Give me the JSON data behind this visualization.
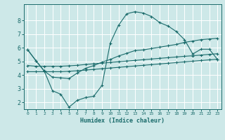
{
  "xlabel": "Humidex (Indice chaleur)",
  "bg_color": "#cde8e8",
  "grid_color": "#ffffff",
  "line_color": "#1a6b6b",
  "xlim": [
    -0.5,
    23.5
  ],
  "ylim": [
    1.5,
    9.2
  ],
  "yticks": [
    2,
    3,
    4,
    5,
    6,
    7,
    8
  ],
  "xticks": [
    0,
    1,
    2,
    3,
    4,
    5,
    6,
    7,
    8,
    9,
    10,
    11,
    12,
    13,
    14,
    15,
    16,
    17,
    18,
    19,
    20,
    21,
    22,
    23
  ],
  "curve1_x": [
    0,
    1,
    2,
    3,
    4,
    5,
    6,
    7,
    8,
    9,
    10,
    11,
    12,
    13,
    14,
    15,
    16,
    17,
    18,
    19,
    20,
    21,
    22,
    23
  ],
  "curve1_y": [
    5.85,
    5.05,
    4.3,
    3.85,
    3.8,
    3.75,
    4.15,
    4.5,
    4.7,
    4.95,
    5.15,
    5.4,
    5.6,
    5.8,
    5.85,
    5.95,
    6.05,
    6.15,
    6.25,
    6.4,
    6.5,
    6.6,
    6.65,
    6.7
  ],
  "curve2_x": [
    0,
    1,
    2,
    3,
    4,
    5,
    6,
    7,
    8,
    9,
    10,
    11,
    12,
    13,
    14,
    15,
    16,
    17,
    18,
    19,
    20,
    21,
    22,
    23
  ],
  "curve2_y": [
    4.7,
    4.65,
    4.65,
    4.65,
    4.65,
    4.68,
    4.72,
    4.78,
    4.83,
    4.88,
    4.93,
    4.98,
    5.03,
    5.08,
    5.13,
    5.18,
    5.23,
    5.28,
    5.33,
    5.38,
    5.42,
    5.47,
    5.52,
    5.57
  ],
  "curve3_x": [
    0,
    1,
    2,
    3,
    4,
    5,
    6,
    7,
    8,
    9,
    10,
    11,
    12,
    13,
    14,
    15,
    16,
    17,
    18,
    19,
    20,
    21,
    22,
    23
  ],
  "curve3_y": [
    4.25,
    4.25,
    4.25,
    4.25,
    4.25,
    4.28,
    4.32,
    4.37,
    4.42,
    4.47,
    4.52,
    4.57,
    4.62,
    4.67,
    4.72,
    4.77,
    4.82,
    4.87,
    4.92,
    4.97,
    5.02,
    5.07,
    5.12,
    5.17
  ],
  "curve4_x": [
    0,
    1,
    2,
    3,
    4,
    5,
    6,
    7,
    8,
    9,
    10,
    11,
    12,
    13,
    14,
    15,
    16,
    17,
    18,
    19,
    20,
    21,
    22,
    23
  ],
  "curve4_y": [
    5.85,
    5.05,
    4.3,
    2.85,
    2.6,
    1.65,
    2.15,
    2.35,
    2.45,
    3.25,
    6.35,
    7.65,
    8.5,
    8.65,
    8.55,
    8.3,
    7.85,
    7.6,
    7.2,
    6.6,
    5.55,
    5.9,
    5.9,
    5.15
  ],
  "marker": "+",
  "marker_size": 3.0,
  "linewidth": 0.8
}
